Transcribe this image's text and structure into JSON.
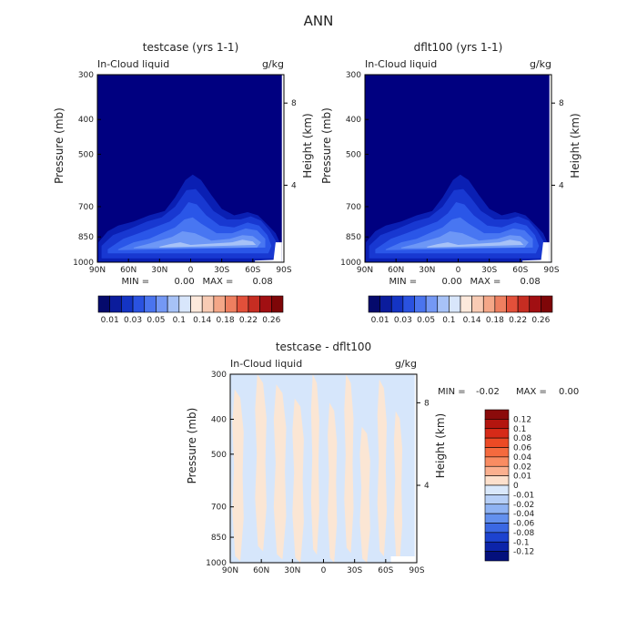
{
  "page": {
    "title": "ANN"
  },
  "colors": {
    "background": "#000080",
    "fill_levels": [
      "#0a1fb3",
      "#1838d1",
      "#2a56e8",
      "#4876f2",
      "#6d97f6",
      "#a7c2f7"
    ],
    "diff_warm": "#fbe6d4",
    "diff_cool": "#d6e6fb",
    "diff_white": "#ffffff",
    "frame": "#000000"
  },
  "chart_data": [
    {
      "type": "heatmap",
      "title": "testcase (yrs 1-1)",
      "field_label": "In-Cloud liquid",
      "units": "g/kg",
      "ylabel": "Pressure (mb)",
      "y2label": "Height (km)",
      "y_ticks": [
        "300",
        "400",
        "500",
        "700",
        "850",
        "1000"
      ],
      "y2_ticks": [
        "8",
        "4"
      ],
      "x_ticks": [
        "90N",
        "60N",
        "30N",
        "0",
        "30S",
        "60S",
        "90S"
      ],
      "xlim": [
        "90N",
        "90S"
      ],
      "ylim": [
        1000,
        300
      ],
      "min_label": "MIN =",
      "min_value": "0.00",
      "max_label": "MAX =",
      "max_value": "0.08",
      "colorbar_labels": [
        "0.01",
        "0.03",
        "0.05",
        "0.1",
        "0.14",
        "0.18",
        "0.22",
        "0.26"
      ],
      "colorbar_colors": [
        "#050a6c",
        "#0b1c9c",
        "#1434c4",
        "#2a52e0",
        "#4a74ee",
        "#7498f4",
        "#a7c2f7",
        "#d8e6fb",
        "#fde9dc",
        "#f8cbb4",
        "#f4a788",
        "#ee7f60",
        "#e2503a",
        "#c62d22",
        "#a10f12",
        "#7e0608"
      ],
      "contours": [
        {
          "level": 0.01,
          "boundary": [
            [
              -89,
              880
            ],
            [
              -80,
              820
            ],
            [
              -70,
              790
            ],
            [
              -55,
              770
            ],
            [
              -40,
              740
            ],
            [
              -25,
              720
            ],
            [
              -15,
              660
            ],
            [
              -5,
              590
            ],
            [
              2,
              570
            ],
            [
              10,
              590
            ],
            [
              20,
              650
            ],
            [
              30,
              710
            ],
            [
              42,
              740
            ],
            [
              55,
              725
            ],
            [
              65,
              740
            ],
            [
              75,
              790
            ],
            [
              82,
              830
            ],
            [
              86,
              880
            ],
            [
              88,
              960
            ],
            [
              89,
              1000
            ],
            [
              -89,
              1000
            ]
          ]
        },
        {
          "level": 0.02,
          "boundary": [
            [
              -86,
              900
            ],
            [
              -75,
              840
            ],
            [
              -60,
              810
            ],
            [
              -42,
              770
            ],
            [
              -28,
              750
            ],
            [
              -15,
              700
            ],
            [
              -4,
              630
            ],
            [
              5,
              625
            ],
            [
              12,
              660
            ],
            [
              22,
              720
            ],
            [
              35,
              760
            ],
            [
              48,
              760
            ],
            [
              58,
              745
            ],
            [
              68,
              765
            ],
            [
              76,
              815
            ],
            [
              82,
              870
            ],
            [
              85,
              930
            ],
            [
              85,
              975
            ],
            [
              -86,
              975
            ]
          ]
        },
        {
          "level": 0.03,
          "boundary": [
            [
              -80,
              920
            ],
            [
              -65,
              860
            ],
            [
              -50,
              830
            ],
            [
              -35,
              800
            ],
            [
              -20,
              770
            ],
            [
              -10,
              730
            ],
            [
              -2,
              680
            ],
            [
              6,
              690
            ],
            [
              15,
              740
            ],
            [
              28,
              790
            ],
            [
              42,
              800
            ],
            [
              55,
              775
            ],
            [
              66,
              790
            ],
            [
              74,
              840
            ],
            [
              78,
              900
            ],
            [
              75,
              945
            ],
            [
              -80,
              945
            ]
          ]
        },
        {
          "level": 0.04,
          "boundary": [
            [
              -70,
              920
            ],
            [
              -55,
              880
            ],
            [
              -40,
              860
            ],
            [
              -28,
              830
            ],
            [
              -15,
              800
            ],
            [
              -6,
              760
            ],
            [
              2,
              750
            ],
            [
              10,
              780
            ],
            [
              25,
              830
            ],
            [
              40,
              830
            ],
            [
              53,
              805
            ],
            [
              64,
              815
            ],
            [
              72,
              860
            ],
            [
              72,
              910
            ],
            [
              -70,
              925
            ]
          ]
        },
        {
          "level": 0.05,
          "boundary": [
            [
              -55,
              910
            ],
            [
              -42,
              890
            ],
            [
              -30,
              870
            ],
            [
              -18,
              850
            ],
            [
              -8,
              820
            ],
            [
              4,
              830
            ],
            [
              20,
              870
            ],
            [
              38,
              860
            ],
            [
              50,
              840
            ],
            [
              60,
              845
            ],
            [
              68,
              880
            ],
            [
              64,
              910
            ],
            [
              -55,
              915
            ]
          ]
        },
        {
          "level": 0.06,
          "boundary": [
            [
              -30,
              905
            ],
            [
              -20,
              890
            ],
            [
              -10,
              880
            ],
            [
              0,
              895
            ],
            [
              40,
              880
            ],
            [
              50,
              865
            ],
            [
              60,
              875
            ],
            [
              63,
              895
            ],
            [
              -30,
              910
            ]
          ]
        }
      ]
    },
    {
      "type": "heatmap",
      "title": "dflt100 (yrs 1-1)",
      "field_label": "In-Cloud liquid",
      "units": "g/kg",
      "ylabel": "Pressure (mb)",
      "y2label": "Height (km)",
      "y_ticks": [
        "300",
        "400",
        "500",
        "700",
        "850",
        "1000"
      ],
      "y2_ticks": [
        "8",
        "4"
      ],
      "x_ticks": [
        "90N",
        "60N",
        "30N",
        "0",
        "30S",
        "60S",
        "90S"
      ],
      "xlim": [
        "90N",
        "90S"
      ],
      "ylim": [
        1000,
        300
      ],
      "min_label": "MIN =",
      "min_value": "0.00",
      "max_label": "MAX =",
      "max_value": "0.08",
      "colorbar_labels": [
        "0.01",
        "0.03",
        "0.05",
        "0.1",
        "0.14",
        "0.18",
        "0.22",
        "0.26"
      ],
      "colorbar_colors": [
        "#050a6c",
        "#0b1c9c",
        "#1434c4",
        "#2a52e0",
        "#4a74ee",
        "#7498f4",
        "#a7c2f7",
        "#d8e6fb",
        "#fde9dc",
        "#f8cbb4",
        "#f4a788",
        "#ee7f60",
        "#e2503a",
        "#c62d22",
        "#a10f12",
        "#7e0608"
      ],
      "contours": [
        {
          "level": 0.01,
          "boundary": [
            [
              -89,
              880
            ],
            [
              -80,
              820
            ],
            [
              -70,
              790
            ],
            [
              -55,
              770
            ],
            [
              -40,
              740
            ],
            [
              -25,
              720
            ],
            [
              -15,
              660
            ],
            [
              -5,
              590
            ],
            [
              2,
              570
            ],
            [
              10,
              590
            ],
            [
              20,
              650
            ],
            [
              30,
              710
            ],
            [
              42,
              740
            ],
            [
              55,
              725
            ],
            [
              65,
              740
            ],
            [
              75,
              790
            ],
            [
              82,
              830
            ],
            [
              86,
              880
            ],
            [
              88,
              960
            ],
            [
              89,
              1000
            ],
            [
              -89,
              1000
            ]
          ]
        },
        {
          "level": 0.02,
          "boundary": [
            [
              -86,
              900
            ],
            [
              -75,
              840
            ],
            [
              -60,
              810
            ],
            [
              -42,
              770
            ],
            [
              -28,
              750
            ],
            [
              -15,
              700
            ],
            [
              -4,
              630
            ],
            [
              5,
              625
            ],
            [
              12,
              660
            ],
            [
              22,
              720
            ],
            [
              35,
              760
            ],
            [
              48,
              760
            ],
            [
              58,
              745
            ],
            [
              68,
              765
            ],
            [
              76,
              815
            ],
            [
              82,
              870
            ],
            [
              85,
              930
            ],
            [
              85,
              975
            ],
            [
              -86,
              975
            ]
          ]
        },
        {
          "level": 0.03,
          "boundary": [
            [
              -80,
              920
            ],
            [
              -65,
              860
            ],
            [
              -50,
              830
            ],
            [
              -35,
              800
            ],
            [
              -20,
              770
            ],
            [
              -10,
              730
            ],
            [
              -2,
              680
            ],
            [
              6,
              690
            ],
            [
              15,
              740
            ],
            [
              28,
              790
            ],
            [
              42,
              800
            ],
            [
              55,
              775
            ],
            [
              66,
              790
            ],
            [
              74,
              840
            ],
            [
              78,
              900
            ],
            [
              75,
              945
            ],
            [
              -80,
              945
            ]
          ]
        },
        {
          "level": 0.04,
          "boundary": [
            [
              -70,
              920
            ],
            [
              -55,
              880
            ],
            [
              -40,
              860
            ],
            [
              -28,
              830
            ],
            [
              -15,
              800
            ],
            [
              -6,
              760
            ],
            [
              2,
              750
            ],
            [
              10,
              780
            ],
            [
              25,
              830
            ],
            [
              40,
              830
            ],
            [
              53,
              805
            ],
            [
              64,
              815
            ],
            [
              72,
              860
            ],
            [
              72,
              910
            ],
            [
              -70,
              925
            ]
          ]
        },
        {
          "level": 0.05,
          "boundary": [
            [
              -55,
              910
            ],
            [
              -42,
              890
            ],
            [
              -30,
              870
            ],
            [
              -18,
              850
            ],
            [
              -8,
              820
            ],
            [
              4,
              830
            ],
            [
              20,
              870
            ],
            [
              38,
              860
            ],
            [
              50,
              840
            ],
            [
              60,
              845
            ],
            [
              68,
              880
            ],
            [
              64,
              910
            ],
            [
              -55,
              915
            ]
          ]
        },
        {
          "level": 0.06,
          "boundary": [
            [
              -30,
              905
            ],
            [
              -20,
              890
            ],
            [
              -10,
              880
            ],
            [
              0,
              895
            ],
            [
              40,
              880
            ],
            [
              50,
              865
            ],
            [
              60,
              875
            ],
            [
              63,
              895
            ],
            [
              -30,
              910
            ]
          ]
        }
      ]
    },
    {
      "type": "heatmap",
      "title": "testcase - dflt100",
      "field_label": "In-Cloud liquid",
      "units": "g/kg",
      "ylabel": "Pressure (mb)",
      "y2label": "Height (km)",
      "y_ticks": [
        "300",
        "400",
        "500",
        "700",
        "850",
        "1000"
      ],
      "y2_ticks": [
        "8",
        "4"
      ],
      "x_ticks": [
        "90N",
        "60N",
        "30N",
        "0",
        "30S",
        "60S",
        "90S"
      ],
      "xlim": [
        "90N",
        "90S"
      ],
      "ylim": [
        1000,
        300
      ],
      "min_label": "MIN =",
      "min_value": "-0.02",
      "max_label": "MAX =",
      "max_value": "0.00",
      "colorbar_labels": [
        "0.12",
        "0.1",
        "0.08",
        "0.06",
        "0.04",
        "0.02",
        "0.01",
        "0",
        "-0.01",
        "-0.02",
        "-0.04",
        "-0.06",
        "-0.08",
        "-0.1",
        "-0.12"
      ],
      "colorbar_colors": [
        "#8b0b0b",
        "#b3150f",
        "#d62a18",
        "#ec4a25",
        "#f56a3e",
        "#f98c62",
        "#fbb08f",
        "#fde0cc",
        "#d9e8fb",
        "#b6cff7",
        "#8fb3f3",
        "#6390ee",
        "#3b68e3",
        "#1d43cf",
        "#0c24a9",
        "#04107c"
      ],
      "regions": [
        {
          "sign": "positive",
          "lat": [
            -88,
            -77
          ],
          "p": [
            330,
            990
          ]
        },
        {
          "sign": "positive",
          "lat": [
            -66,
            -55
          ],
          "p": [
            300,
            930
          ]
        },
        {
          "sign": "positive",
          "lat": [
            -48,
            -36
          ],
          "p": [
            320,
            980
          ]
        },
        {
          "sign": "positive",
          "lat": [
            -30,
            -19
          ],
          "p": [
            350,
            1000
          ]
        },
        {
          "sign": "positive",
          "lat": [
            -12,
            -4
          ],
          "p": [
            300,
            950
          ]
        },
        {
          "sign": "positive",
          "lat": [
            4,
            13
          ],
          "p": [
            360,
            1000
          ]
        },
        {
          "sign": "positive",
          "lat": [
            20,
            29
          ],
          "p": [
            300,
            940
          ]
        },
        {
          "sign": "positive",
          "lat": [
            35,
            45
          ],
          "p": [
            420,
            1000
          ]
        },
        {
          "sign": "positive",
          "lat": [
            52,
            61
          ],
          "p": [
            310,
            960
          ]
        },
        {
          "sign": "positive",
          "lat": [
            68,
            76
          ],
          "p": [
            380,
            990
          ]
        }
      ]
    }
  ]
}
